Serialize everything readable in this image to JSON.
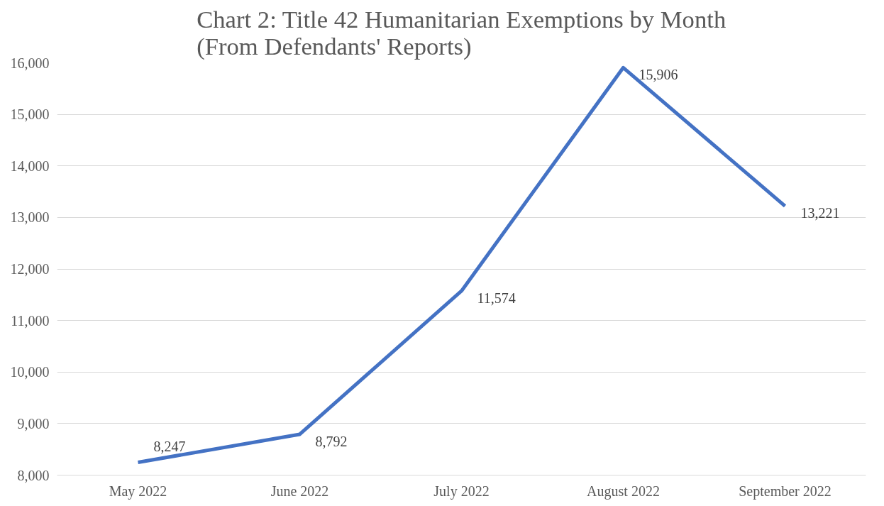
{
  "chart_data": {
    "type": "line",
    "title": "Chart 2: Title 42 Humanitarian Exemptions by Month\n(From Defendants' Reports)",
    "categories": [
      "May 2022",
      "June 2022",
      "July 2022",
      "August 2022",
      "September 2022"
    ],
    "series": [
      {
        "color": "#4472c4",
        "values": [
          8247,
          8792,
          11574,
          15906,
          13221
        ],
        "value_labels": [
          "8,247",
          "8,792",
          "11,574",
          "15,906",
          "13,221"
        ]
      }
    ],
    "ylim": [
      8000,
      16000
    ],
    "yticks": [
      {
        "value": 8000,
        "label": "8,000"
      },
      {
        "value": 9000,
        "label": "9,000"
      },
      {
        "value": 10000,
        "label": "10,000"
      },
      {
        "value": 11000,
        "label": "11,000"
      },
      {
        "value": 12000,
        "label": "12,000"
      },
      {
        "value": 13000,
        "label": "13,000"
      },
      {
        "value": 14000,
        "label": "14,000"
      },
      {
        "value": 15000,
        "label": "15,000"
      },
      {
        "value": 16000,
        "label": "16,000"
      }
    ],
    "grid": "y",
    "marker": "none",
    "line_style": "solid"
  }
}
